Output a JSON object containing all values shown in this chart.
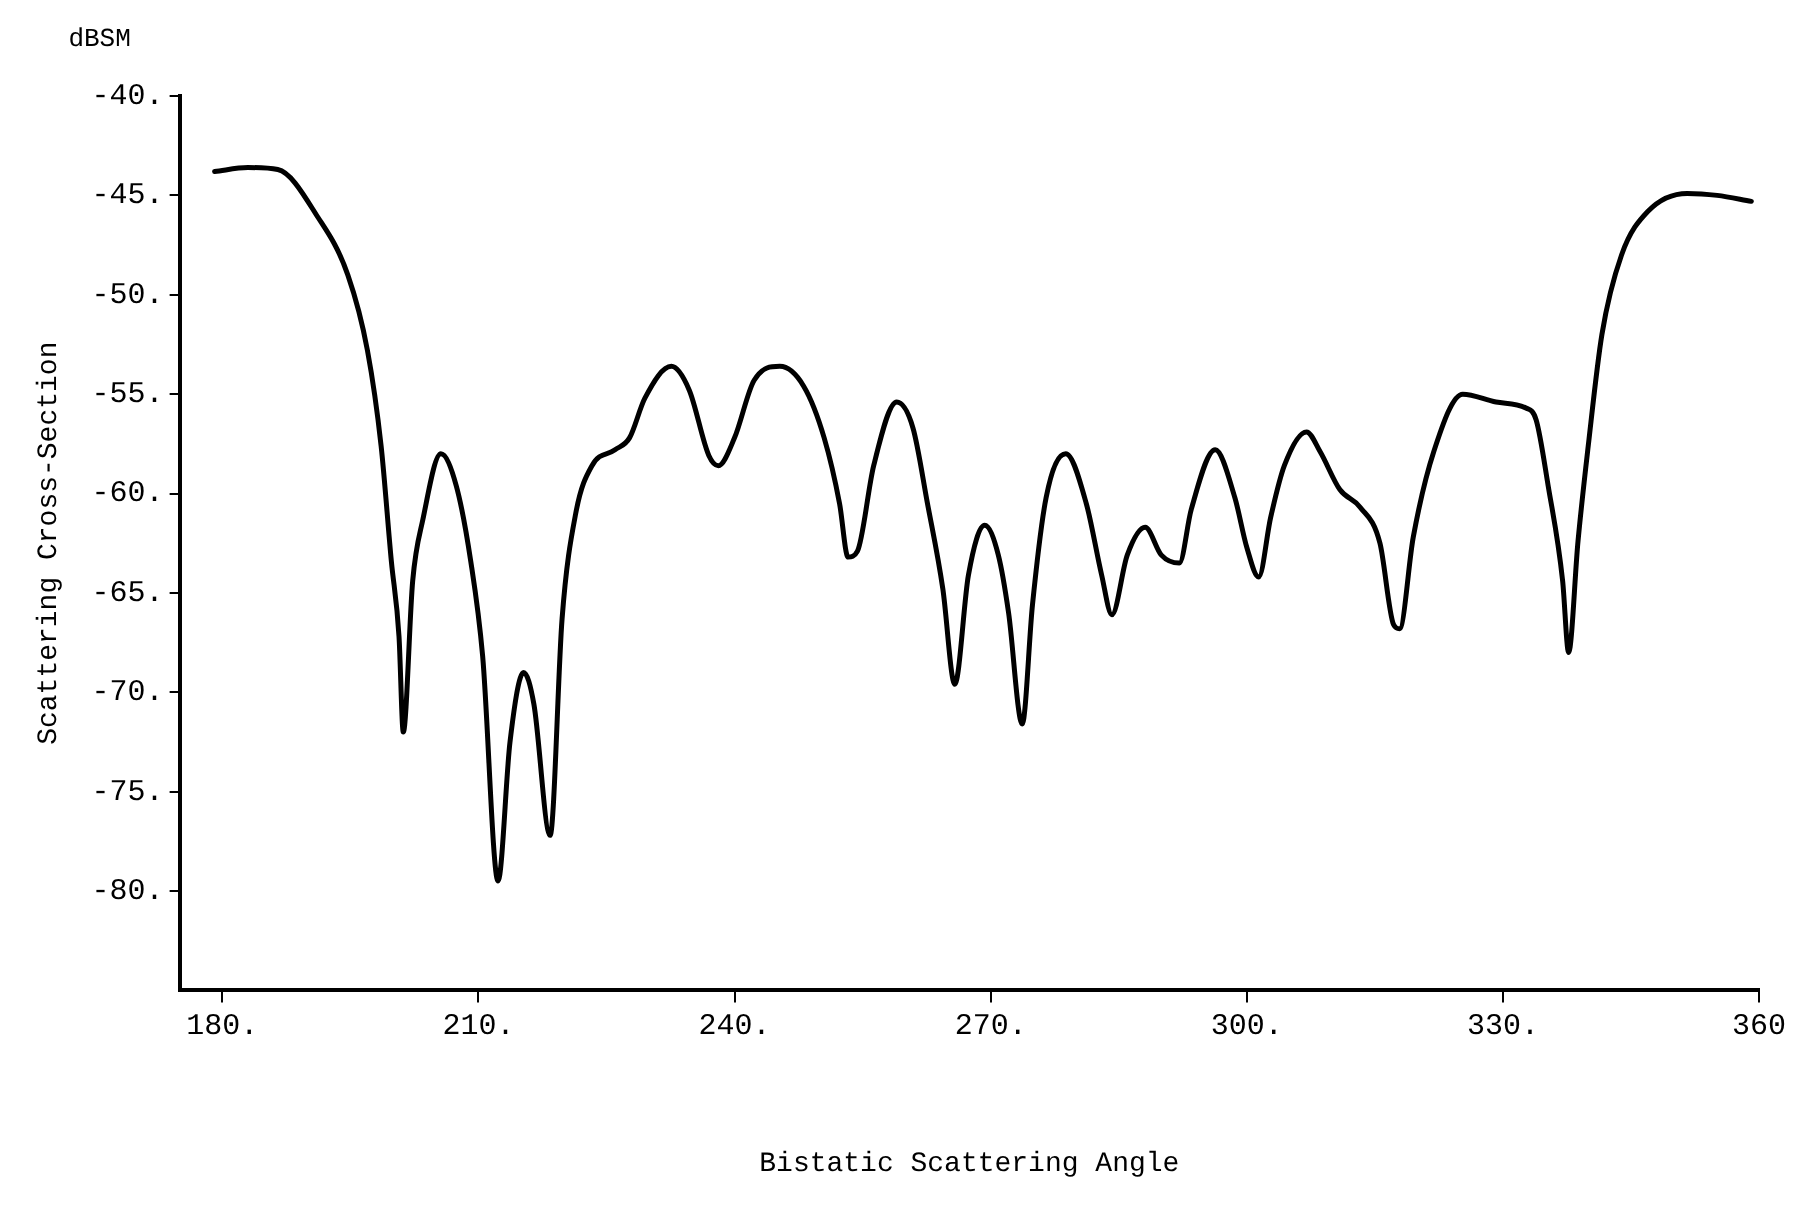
{
  "chart_data": {
    "type": "line",
    "xlabel": "Bistatic Scattering Angle",
    "ylabel": "Scattering Cross-Section",
    "annotations": [
      "dBSM"
    ],
    "xlim": [
      175,
      360
    ],
    "ylim": [
      -85,
      -40
    ],
    "xticks": [
      {
        "value": 180,
        "label": "180."
      },
      {
        "value": 210,
        "label": "210."
      },
      {
        "value": 240,
        "label": "240."
      },
      {
        "value": 270,
        "label": "270."
      },
      {
        "value": 300,
        "label": "300."
      },
      {
        "value": 330,
        "label": "330."
      },
      360
    ],
    "yticks": [
      {
        "value": -40,
        "label": "-40."
      },
      {
        "value": -45,
        "label": "-45."
      },
      {
        "value": -50,
        "label": "-50."
      },
      {
        "value": -55,
        "label": "-55."
      },
      {
        "value": -60,
        "label": "-60."
      },
      {
        "value": -65,
        "label": "-65."
      },
      {
        "value": -70,
        "label": "-70."
      },
      {
        "value": -75,
        "label": "-75."
      },
      {
        "value": -80,
        "label": "-80."
      }
    ],
    "grid": false,
    "legend": false,
    "marker": "none",
    "line_style": "solid",
    "series": [
      {
        "color": "#000000",
        "x": [
          179.1,
          183,
          186.5,
          191.2,
          194.7,
          197,
          198.6,
          199.8,
          200.7,
          201.2,
          202.3,
          203.5,
          205.6,
          207.4,
          209.1,
          210.5,
          212.3,
          213.7,
          215.3,
          216.5,
          218.4,
          219.8,
          221.4,
          223.3,
          226,
          227.7,
          229.5,
          232.6,
          234.7,
          237,
          238.1,
          240,
          242.3,
          245.3,
          248.1,
          250.5,
          252.3,
          253.3,
          254.4,
          256.3,
          259,
          260.9,
          262.6,
          264.4,
          265.8,
          267.4,
          269.3,
          270.9,
          272.1,
          273.7,
          274.9,
          276.5,
          278.8,
          281.2,
          283,
          284.2,
          286,
          288.1,
          290,
          292.1,
          293.5,
          296.3,
          298.6,
          300,
          301.4,
          302.8,
          304.4,
          307,
          308.6,
          310.9,
          313.3,
          315.6,
          317.2,
          317.9,
          319.5,
          321.9,
          325.3,
          329.2,
          332.7,
          333.9,
          335.3,
          337,
          337.7,
          338.8,
          340,
          341.6,
          343.9,
          347,
          351.6,
          355.1,
          359.1
        ],
        "values": [
          -43.8,
          -43.6,
          -43.7,
          -46.1,
          -49,
          -52.8,
          -57.6,
          -63.4,
          -67.2,
          -72,
          -64.4,
          -61.3,
          -58,
          -59.6,
          -63.4,
          -68.2,
          -79.5,
          -72.5,
          -69,
          -70.6,
          -77.2,
          -66.3,
          -61,
          -58.6,
          -57.8,
          -57.2,
          -55.2,
          -53.6,
          -54.8,
          -58.1,
          -58.6,
          -57.2,
          -54.3,
          -53.6,
          -54.6,
          -57.2,
          -60.5,
          -63.2,
          -62.9,
          -58.6,
          -55.4,
          -56.7,
          -60.5,
          -64.8,
          -69.6,
          -64.1,
          -61.6,
          -63.1,
          -66,
          -71.6,
          -65.6,
          -60.2,
          -58,
          -60.5,
          -64.1,
          -66.1,
          -63.1,
          -61.7,
          -63.1,
          -63.5,
          -60.8,
          -57.8,
          -60.2,
          -62.7,
          -64.2,
          -61.2,
          -58.6,
          -56.9,
          -57.9,
          -59.8,
          -60.7,
          -62.5,
          -66.6,
          -66.8,
          -62.2,
          -57.9,
          -55,
          -55.4,
          -55.7,
          -56.3,
          -59.6,
          -64.4,
          -68,
          -62.4,
          -57.6,
          -52,
          -48,
          -45.8,
          -44.9,
          -45,
          -45.3
        ]
      }
    ]
  }
}
